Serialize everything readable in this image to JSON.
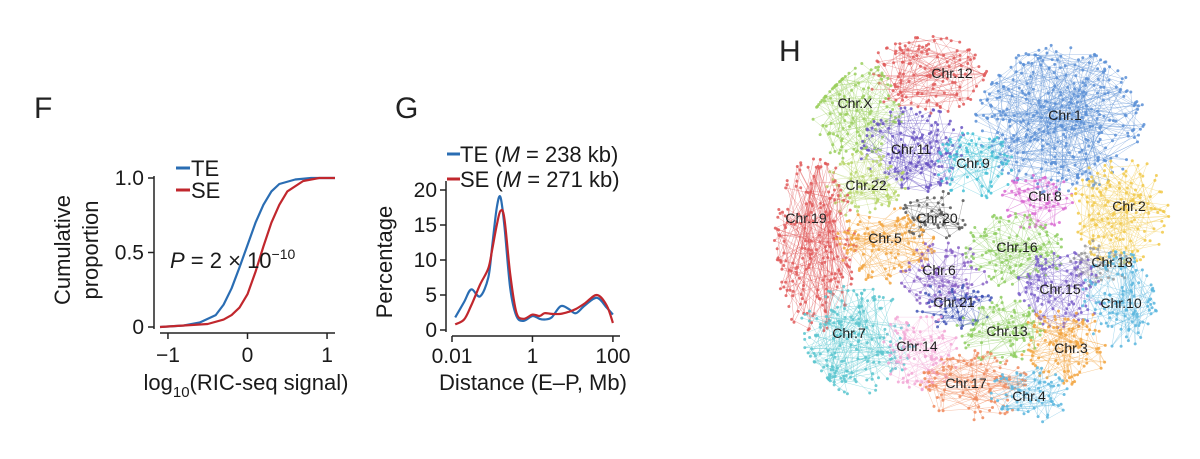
{
  "panels": {
    "F": "F",
    "G": "G",
    "H": "H"
  },
  "chart_data": [
    {
      "type": "line",
      "panel": "F",
      "xlabel": "log10(RIC-seq signal)",
      "xlabel_base": "log",
      "xlabel_sub": "10",
      "xlabel_rest": "(RIC-seq signal)",
      "ylabel_lines": [
        "Cumulative",
        "proportion"
      ],
      "xlim": [
        -1.1,
        1.1
      ],
      "ylim": [
        0,
        1.0
      ],
      "xticks": [
        -1,
        0,
        1
      ],
      "xtick_labels": [
        "−1",
        "0",
        "1"
      ],
      "yticks": [
        0,
        0.5,
        1.0
      ],
      "ytick_labels": [
        "0",
        "0.5",
        "1.0"
      ],
      "annotation": "P = 2 × 10−10",
      "annotation_parts": {
        "p": "P",
        "mid": " = 2 × 10",
        "exp": "−10"
      },
      "legend_position": "top-left",
      "series": [
        {
          "name": "TE",
          "color": "#2a6db3",
          "x": [
            -1.1,
            -0.8,
            -0.6,
            -0.4,
            -0.3,
            -0.2,
            -0.1,
            0.0,
            0.1,
            0.2,
            0.3,
            0.4,
            0.6,
            0.8,
            1.1
          ],
          "y": [
            0.0,
            0.01,
            0.03,
            0.08,
            0.15,
            0.26,
            0.4,
            0.55,
            0.7,
            0.82,
            0.91,
            0.96,
            0.99,
            1.0,
            1.0
          ]
        },
        {
          "name": "SE",
          "color": "#c1272d",
          "x": [
            -1.1,
            -0.8,
            -0.5,
            -0.3,
            -0.2,
            -0.1,
            0.0,
            0.1,
            0.2,
            0.3,
            0.4,
            0.5,
            0.7,
            0.9,
            1.1
          ],
          "y": [
            0.0,
            0.01,
            0.02,
            0.05,
            0.08,
            0.13,
            0.22,
            0.37,
            0.54,
            0.7,
            0.82,
            0.91,
            0.98,
            1.0,
            1.0
          ]
        }
      ]
    },
    {
      "type": "line",
      "panel": "G",
      "xlabel": "Distance (E–P, Mb)",
      "ylabel": "Percentage",
      "xscale": "log",
      "xlim": [
        0.01,
        150
      ],
      "ylim": [
        0,
        21
      ],
      "xticks": [
        0.01,
        1,
        100
      ],
      "xtick_labels": [
        "0.01",
        "1",
        "100"
      ],
      "yticks": [
        0,
        5,
        10,
        15,
        20
      ],
      "ytick_labels": [
        "0",
        "5",
        "10",
        "15",
        "20"
      ],
      "legend_position": "top",
      "series": [
        {
          "name": "TE (M = 238 kb)",
          "label_prefix": "TE (",
          "label_m": "M",
          "label_suffix": " = 238 kb)",
          "color": "#2a6db3",
          "x": [
            0.012,
            0.02,
            0.03,
            0.05,
            0.08,
            0.1,
            0.13,
            0.16,
            0.2,
            0.28,
            0.4,
            0.6,
            1,
            1.5,
            2,
            3,
            5,
            8,
            12,
            20,
            40,
            70,
            100
          ],
          "y": [
            1.8,
            4.0,
            5.8,
            4.8,
            7.5,
            12.0,
            17.5,
            19.0,
            15.0,
            6.0,
            2.0,
            1.3,
            2.0,
            1.6,
            1.5,
            1.8,
            3.4,
            3.0,
            2.4,
            3.5,
            4.6,
            3.2,
            2.2
          ]
        },
        {
          "name": "SE (M = 271 kb)",
          "label_prefix": "SE (",
          "label_m": "M",
          "label_suffix": " = 271 kb)",
          "color": "#c1272d",
          "x": [
            0.012,
            0.02,
            0.03,
            0.05,
            0.08,
            0.1,
            0.13,
            0.16,
            0.2,
            0.28,
            0.4,
            0.6,
            1,
            1.5,
            2,
            3,
            5,
            8,
            12,
            20,
            40,
            70,
            100
          ],
          "y": [
            0.8,
            1.5,
            3.5,
            6.5,
            8.8,
            11.5,
            15.0,
            17.0,
            16.0,
            8.0,
            2.5,
            1.6,
            2.2,
            2.0,
            2.4,
            2.3,
            2.3,
            2.6,
            3.0,
            3.8,
            5.0,
            3.5,
            1.0
          ]
        }
      ]
    },
    {
      "type": "network",
      "panel": "H",
      "clusters": [
        {
          "label": "Chr.12",
          "color": "#e05a5a"
        },
        {
          "label": "Chr.X",
          "color": "#9bcf5e"
        },
        {
          "label": "Chr.1",
          "color": "#5b8fd6"
        },
        {
          "label": "Chr.11",
          "color": "#6a55c3"
        },
        {
          "label": "Chr.9",
          "color": "#45c1d6"
        },
        {
          "label": "Chr.22",
          "color": "#b7d66a"
        },
        {
          "label": "Chr.8",
          "color": "#d96bd2"
        },
        {
          "label": "Chr.19",
          "color": "#e05a5a"
        },
        {
          "label": "Chr.20",
          "color": "#555555"
        },
        {
          "label": "Chr.2",
          "color": "#f1c94a"
        },
        {
          "label": "Chr.5",
          "color": "#f2a440"
        },
        {
          "label": "Chr.16",
          "color": "#8fce62"
        },
        {
          "label": "Chr.18",
          "color": "#999999"
        },
        {
          "label": "Chr.6",
          "color": "#8862c6"
        },
        {
          "label": "Chr.15",
          "color": "#7a5fca"
        },
        {
          "label": "Chr.10",
          "color": "#5bb6de"
        },
        {
          "label": "Chr.21",
          "color": "#3f52b5"
        },
        {
          "label": "Chr.7",
          "color": "#5ac6cf"
        },
        {
          "label": "Chr.14",
          "color": "#f2a7d6"
        },
        {
          "label": "Chr.13",
          "color": "#8fce62"
        },
        {
          "label": "Chr.3",
          "color": "#f2a440"
        },
        {
          "label": "Chr.17",
          "color": "#f08a5d"
        },
        {
          "label": "Chr.4",
          "color": "#5bb6de"
        }
      ]
    }
  ]
}
